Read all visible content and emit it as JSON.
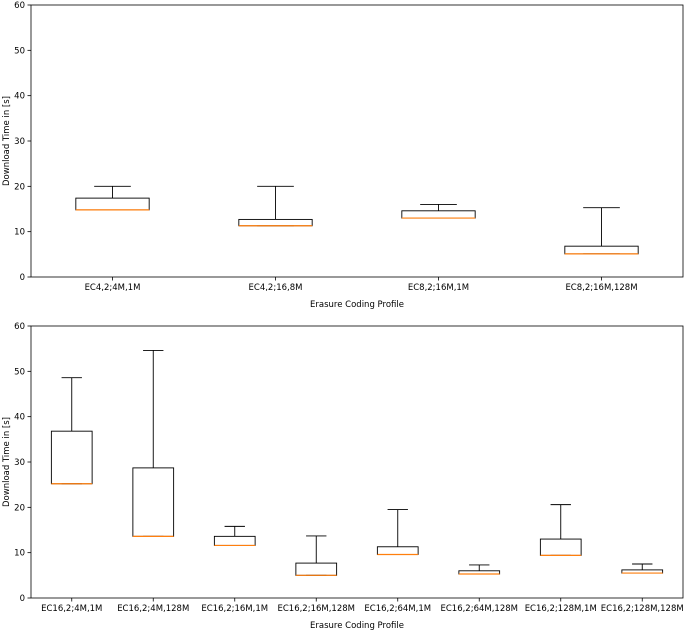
{
  "chart_data": [
    {
      "type": "box",
      "xlabel": "Erasure Coding Profile",
      "ylabel": "Download Time in [s]",
      "ylim": [
        0,
        60
      ],
      "yticks": [
        0,
        10,
        20,
        30,
        40,
        50,
        60
      ],
      "grid": false,
      "median_color": "#ff7f0e",
      "categories": [
        "EC4,2;4M,1M",
        "EC4,2;16,8M",
        "EC8,2;16M,1M",
        "EC8,2;16M,128M"
      ],
      "boxes": [
        {
          "whisker_low": 14.8,
          "q1": 14.8,
          "median": 14.8,
          "q3": 17.4,
          "whisker_high": 20.0
        },
        {
          "whisker_low": 11.3,
          "q1": 11.3,
          "median": 11.3,
          "q3": 12.7,
          "whisker_high": 20.0
        },
        {
          "whisker_low": 13.0,
          "q1": 13.0,
          "median": 13.0,
          "q3": 14.6,
          "whisker_high": 16.0
        },
        {
          "whisker_low": 5.1,
          "q1": 5.1,
          "median": 5.1,
          "q3": 6.8,
          "whisker_high": 15.3
        }
      ]
    },
    {
      "type": "box",
      "xlabel": "Erasure Coding Profile",
      "ylabel": "Download Time in [s]",
      "ylim": [
        0,
        60
      ],
      "yticks": [
        0,
        10,
        20,
        30,
        40,
        50,
        60
      ],
      "grid": false,
      "median_color": "#ff7f0e",
      "categories": [
        "EC16,2;4M,1M",
        "EC16,2;4M,128M",
        "EC16,2;16M,1M",
        "EC16,2;16M,128M",
        "EC16,2;64M,1M",
        "EC16,2;64M,128M",
        "EC16,2;128M,1M",
        "EC16,2;128M,128M"
      ],
      "boxes": [
        {
          "whisker_low": 25.2,
          "q1": 25.2,
          "median": 25.2,
          "q3": 36.8,
          "whisker_high": 48.6
        },
        {
          "whisker_low": 13.6,
          "q1": 13.6,
          "median": 13.6,
          "q3": 28.7,
          "whisker_high": 54.6
        },
        {
          "whisker_low": 11.6,
          "q1": 11.6,
          "median": 11.6,
          "q3": 13.6,
          "whisker_high": 15.8
        },
        {
          "whisker_low": 5.0,
          "q1": 5.0,
          "median": 5.0,
          "q3": 7.7,
          "whisker_high": 13.7
        },
        {
          "whisker_low": 9.6,
          "q1": 9.6,
          "median": 9.6,
          "q3": 11.3,
          "whisker_high": 19.5
        },
        {
          "whisker_low": 5.3,
          "q1": 5.3,
          "median": 5.3,
          "q3": 6.0,
          "whisker_high": 7.3
        },
        {
          "whisker_low": 9.4,
          "q1": 9.4,
          "median": 9.4,
          "q3": 13.0,
          "whisker_high": 20.6
        },
        {
          "whisker_low": 5.5,
          "q1": 5.5,
          "median": 5.5,
          "q3": 6.2,
          "whisker_high": 7.5
        }
      ]
    }
  ]
}
